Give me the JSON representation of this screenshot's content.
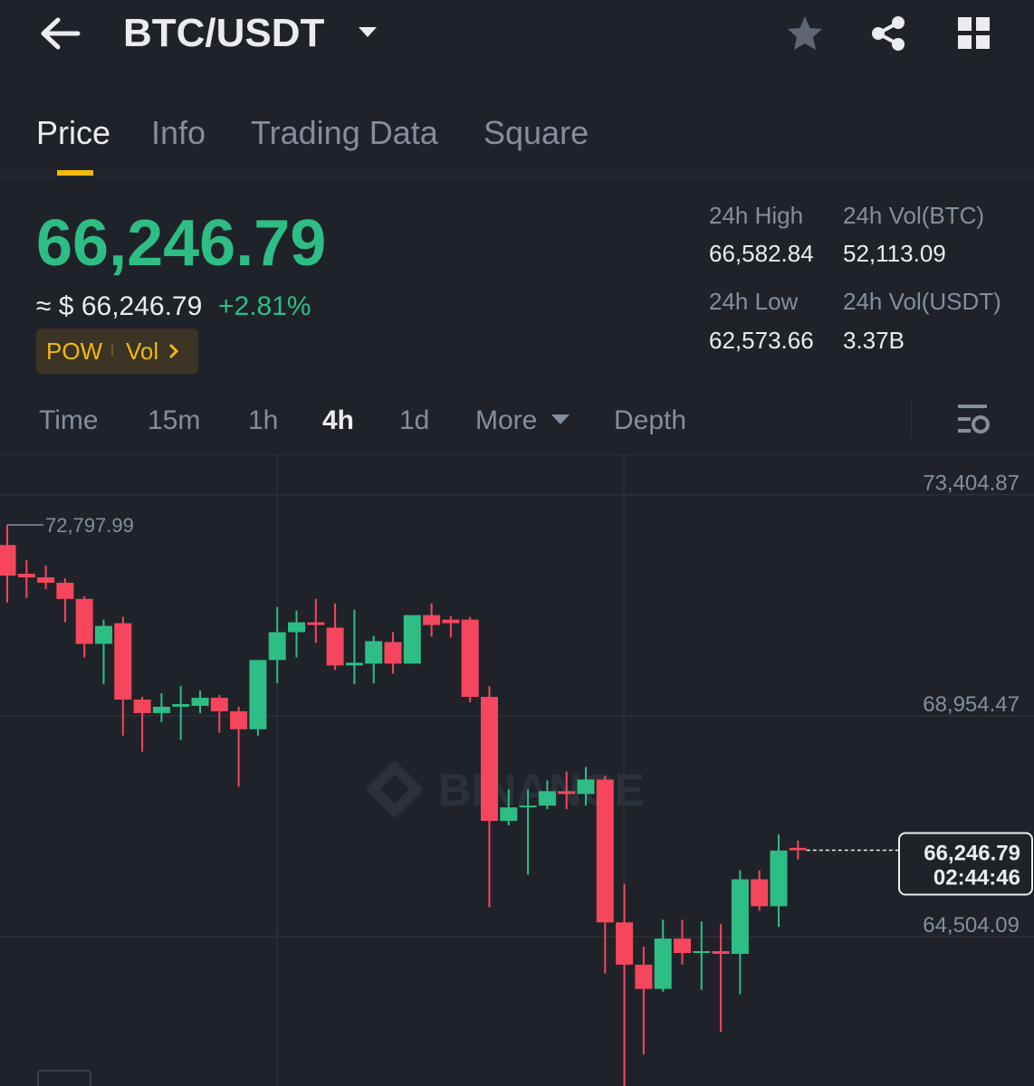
{
  "header": {
    "title": "BTC/USDT"
  },
  "tabs": [
    "Price",
    "Info",
    "Trading Data",
    "Square"
  ],
  "price": {
    "last": "66,246.79",
    "approx": "≈ $ 66,246.79",
    "change": "+2.81%"
  },
  "tags": [
    "POW",
    "Vol"
  ],
  "stats": [
    {
      "label": "24h High",
      "value": "66,582.84"
    },
    {
      "label": "24h Vol(BTC)",
      "value": "52,113.09"
    },
    {
      "label": "24h Low",
      "value": "62,573.66"
    },
    {
      "label": "24h Vol(USDT)",
      "value": "3.37B"
    }
  ],
  "intervals": [
    "Time",
    "15m",
    "1h",
    "4h",
    "1d",
    "More",
    "Depth"
  ],
  "chart_data": {
    "type": "candlestick",
    "open": [
      72391.8,
      71812.9,
      71740.5,
      71632.0,
      71306.3,
      70401.8,
      70817.9,
      69280.2,
      69008.8,
      69135.4,
      69153.5,
      69316.3,
      69045.0,
      68683.1,
      70076.2,
      70637.0,
      70836.0,
      70727.4,
      69967.6,
      70003.8,
      70438.0,
      70003.8,
      70980.7,
      70890.3,
      70890.3,
      69334.4,
      66837.9,
      67109.2,
      67145.4,
      67434.9,
      67380.6,
      67670.1,
      64793.6,
      63943.3,
      63454.8,
      64467.9,
      64178.5,
      64214.7,
      64160.4,
      65661.9,
      65119.2,
      66295.1
    ],
    "high": [
      72797.99,
      72084.3,
      71975.7,
      71722.4,
      71360.6,
      70890.3,
      70944.5,
      69334.4,
      69406.8,
      69551.5,
      69461.1,
      69370.6,
      69135.4,
      70076.2,
      71143.5,
      71071.2,
      71306.3,
      71215.9,
      71089.3,
      70564.6,
      70637.0,
      70980.7,
      71215.9,
      70962.6,
      70944.5,
      69551.5,
      67471.1,
      67471.1,
      67652.0,
      67832.9,
      67923.3,
      67742.4,
      65571.5,
      64305.1,
      64847.9,
      64847.9,
      64811.7,
      64757.4,
      65842.9,
      65842.9,
      66566.5,
      66439.9
    ],
    "low": [
      71234.0,
      71324.4,
      71505.3,
      70836.0,
      70130.4,
      69587.7,
      68556.5,
      68230.9,
      68827.9,
      68466.1,
      69008.8,
      68610.8,
      67525.3,
      68556.5,
      69605.8,
      70130.4,
      70419.9,
      69877.2,
      69587.7,
      69605.8,
      69804.8,
      70003.8,
      70546.5,
      70528.4,
      69225.9,
      65101.1,
      66747.4,
      65752.4,
      67073.0,
      67073.0,
      67145.4,
      63762.4,
      61500,
      62134.2,
      63400.6,
      63943.3,
      63436.8,
      62586.5,
      63346.3,
      65028.8,
      64703.1,
      66059.9
    ],
    "close": [
      71776.7,
      71740.5,
      71632.0,
      71306.3,
      70401.8,
      70763.6,
      69280.2,
      69008.8,
      69135.4,
      69189.7,
      69316.3,
      69045.0,
      68683.1,
      70076.2,
      70637.0,
      70836.0,
      70781.7,
      69967.6,
      70021.9,
      70456.1,
      70003.8,
      70980.7,
      70781.7,
      70817.9,
      69334.4,
      66837.9,
      67109.2,
      67145.4,
      67434.9,
      67380.6,
      67670.1,
      64793.6,
      63943.3,
      63454.8,
      64467.9,
      64178.5,
      64214.7,
      64160.4,
      65661.9,
      65119.2,
      66240.9,
      66246.79
    ],
    "up_color": "#2ebd85",
    "down_color": "#f6465d",
    "ylim": [
      61500,
      74200
    ],
    "yticks": [
      {
        "value": 64504.09,
        "label": "64,504.09"
      },
      {
        "value": 68954.47,
        "label": "68,954.47"
      },
      {
        "value": 73404.87,
        "label": "73,404.87"
      }
    ],
    "grid": true,
    "max_label": {
      "value": 72797.99,
      "label": "72,797.99"
    },
    "last_price": {
      "value": 66246.79,
      "label": "66,246.79"
    },
    "countdown": "02:44:46",
    "watermark": "BINANCE"
  }
}
